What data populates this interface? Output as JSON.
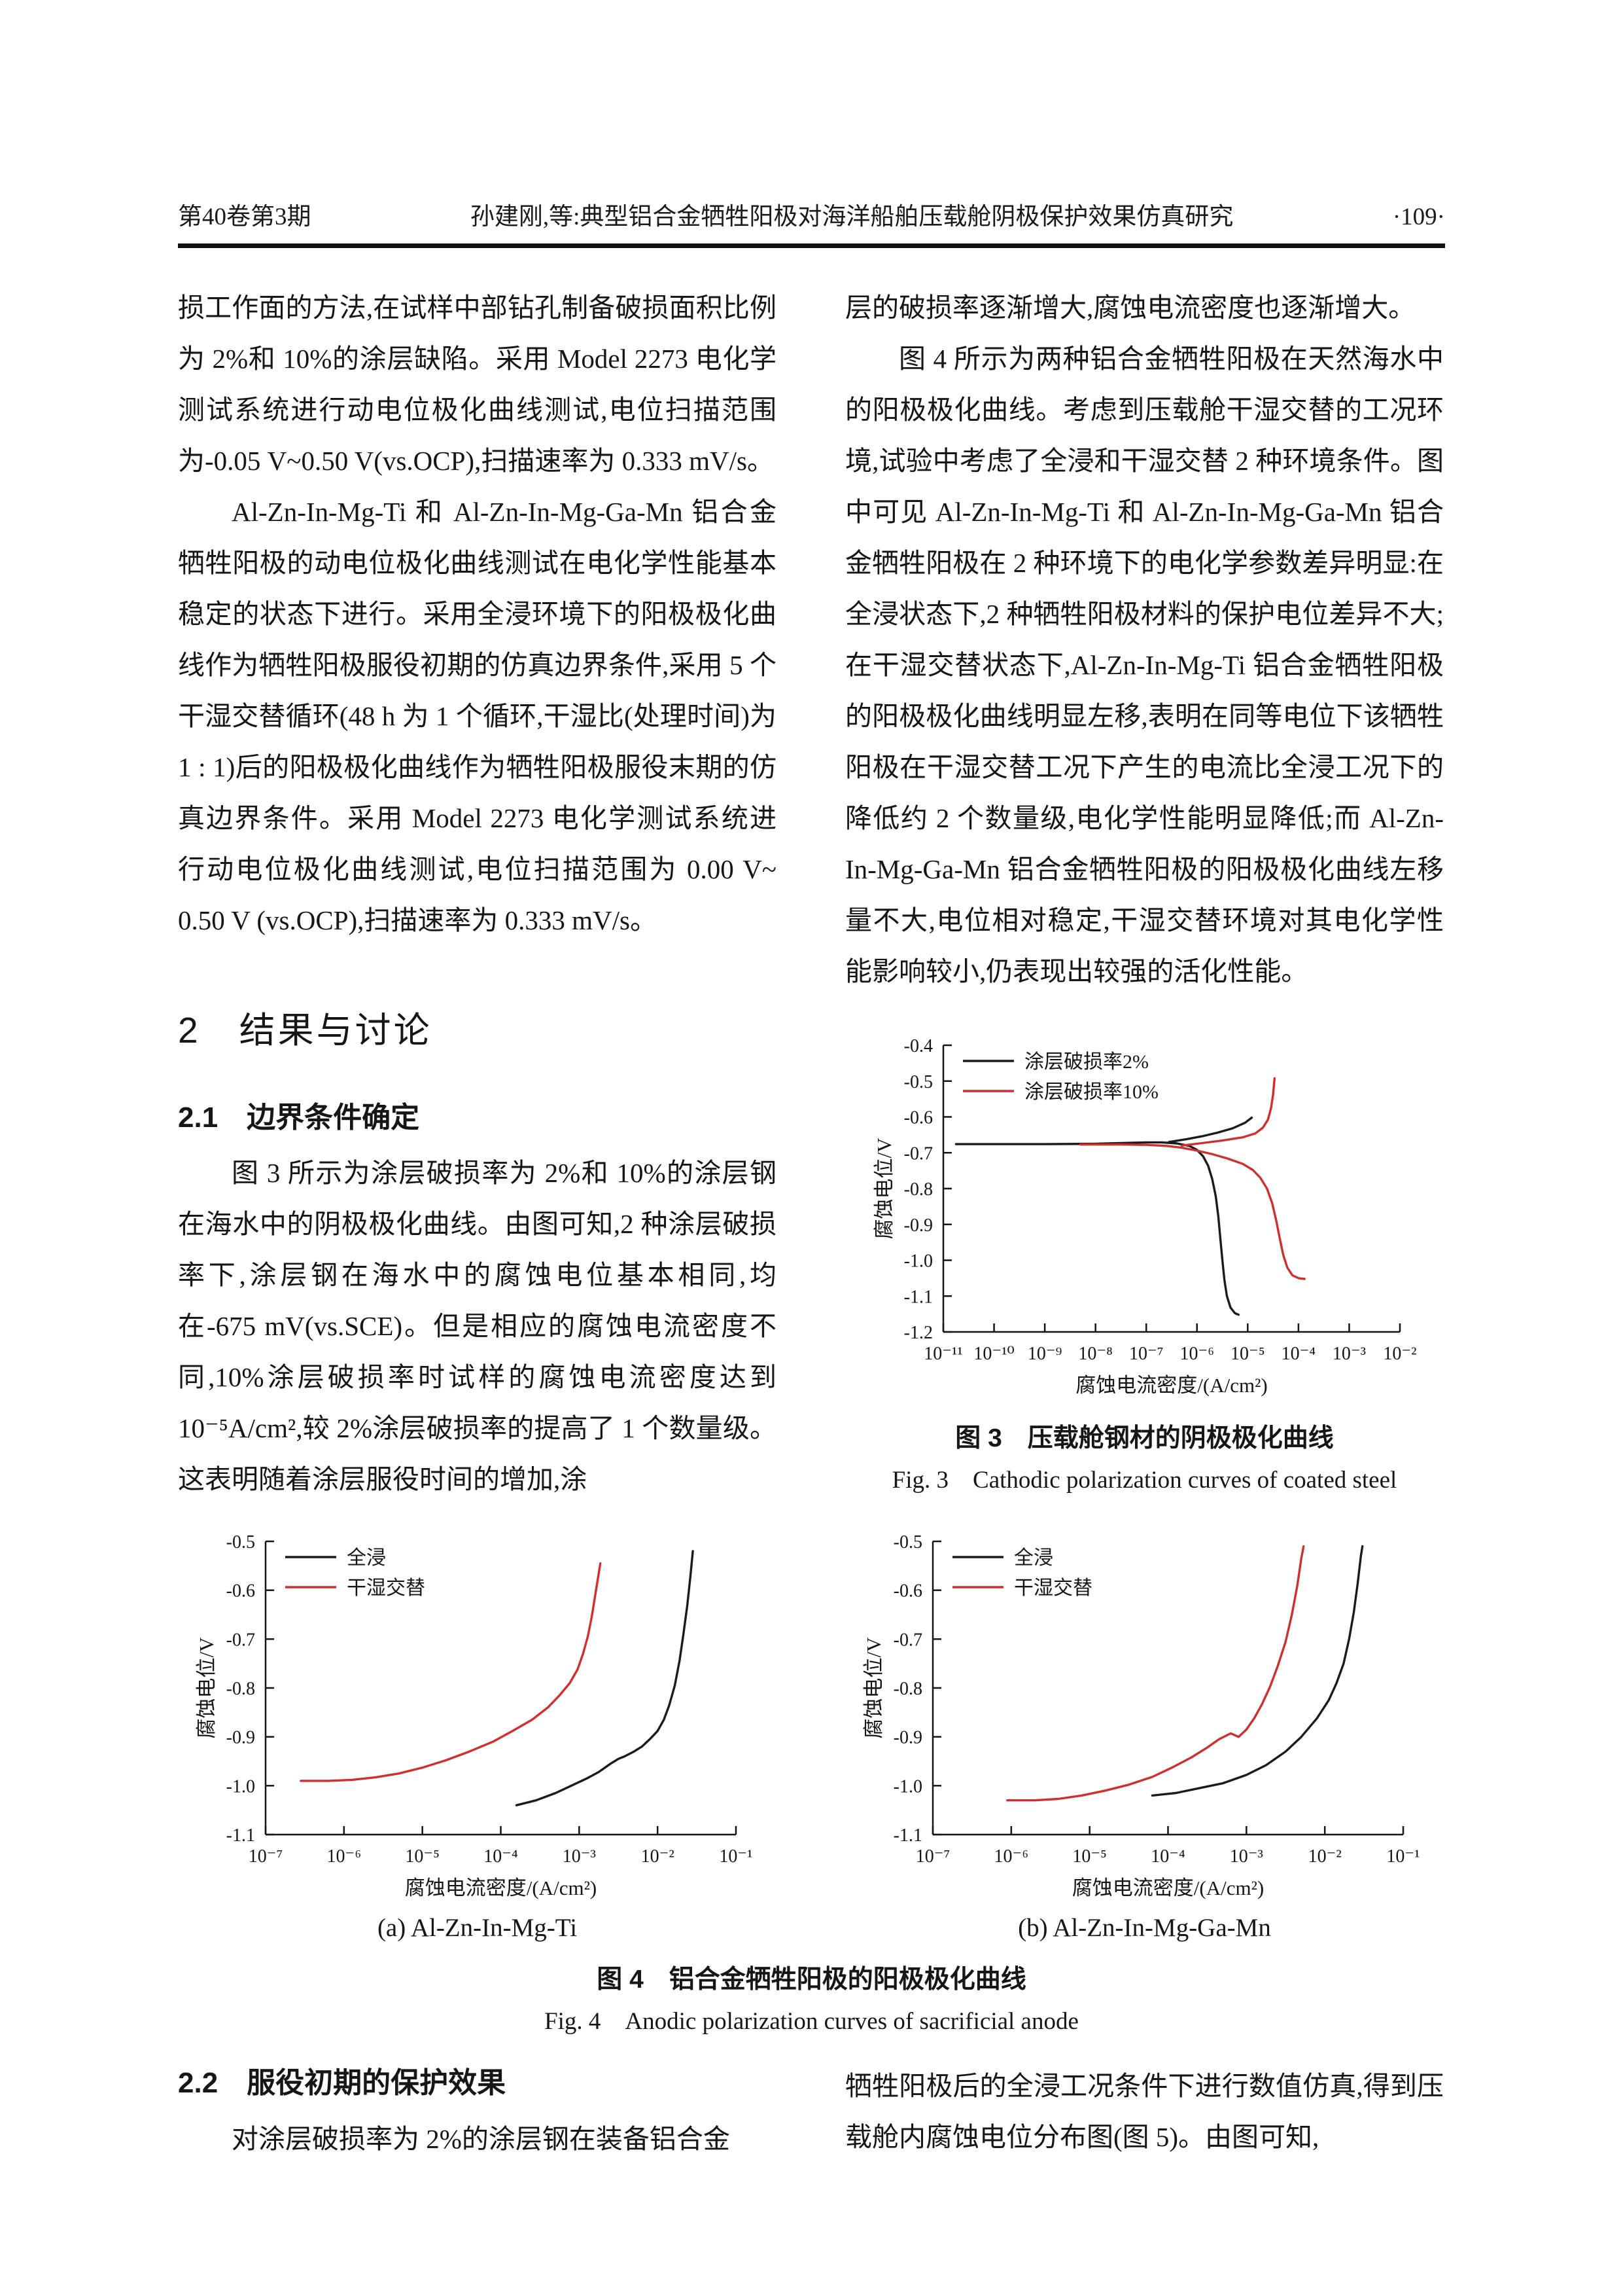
{
  "header": {
    "volume_issue": "第40卷第3期",
    "title": "孙建刚,等:典型铝合金牺牲阳极对海洋船舶压载舱阴极保护效果仿真研究",
    "page_no": "·109·"
  },
  "left": {
    "para1": "损工作面的方法,在试样中部钻孔制备破损面积比例为 2%和 10%的涂层缺陷。采用 Model 2273 电化学测试系统进行动电位极化曲线测试,电位扫描范围为-0.05 V~0.50 V(vs.OCP),扫描速率为 0.333 mV/s。",
    "para2": "Al-Zn-In-Mg-Ti 和 Al-Zn-In-Mg-Ga-Mn 铝合金牺牲阳极的动电位极化曲线测试在电化学性能基本稳定的状态下进行。采用全浸环境下的阳极极化曲线作为牺牲阳极服役初期的仿真边界条件,采用 5 个干湿交替循环(48 h 为 1 个循环,干湿比(处理时间)为 1 : 1)后的阳极极化曲线作为牺牲阳极服役末期的仿真边界条件。采用 Model 2273 电化学测试系统进行动电位极化曲线测试,电位扫描范围为 0.00 V~ 0.50 V (vs.OCP),扫描速率为 0.333 mV/s。",
    "h2": "2　结果与讨论",
    "h21": "2.1　边界条件确定",
    "para3": "图 3 所示为涂层破损率为 2%和 10%的涂层钢在海水中的阴极极化曲线。由图可知,2 种涂层破损率下,涂层钢在海水中的腐蚀电位基本相同,均在-675 mV(vs.SCE)。但是相应的腐蚀电流密度不同,10%涂层破损率时试样的腐蚀电流密度达到 10⁻⁵A/cm²,较 2%涂层破损率的提高了 1 个数量级。这表明随着涂层服役时间的增加,涂",
    "h22": "2.2　服役初期的保护效果",
    "para4": "对涂层破损率为 2%的涂层钢在装备铝合金"
  },
  "right": {
    "para1": "层的破损率逐渐增大,腐蚀电流密度也逐渐增大。",
    "para2": "图 4 所示为两种铝合金牺牲阳极在天然海水中的阳极极化曲线。考虑到压载舱干湿交替的工况环境,试验中考虑了全浸和干湿交替 2 种环境条件。图中可见 Al-Zn-In-Mg-Ti 和 Al-Zn-In-Mg-Ga-Mn 铝合金牺牲阳极在 2 种环境下的电化学参数差异明显:在全浸状态下,2 种牺牲阳极材料的保护电位差异不大;在干湿交替状态下,Al-Zn-In-Mg-Ti 铝合金牺牲阳极的阳极极化曲线明显左移,表明在同等电位下该牺牲阳极在干湿交替工况下产生的电流比全浸工况下的降低约 2 个数量级,电化学性能明显降低;而 Al-Zn-In-Mg-Ga-Mn 铝合金牺牲阳极的阳极极化曲线左移量不大,电位相对稳定,干湿交替环境对其电化学性能影响较小,仍表现出较强的活化性能。",
    "para3": "牺牲阳极后的全浸工况条件下进行数值仿真,得到压载舱内腐蚀电位分布图(图 5)。由图可知,"
  },
  "fig3": {
    "caption_cn": "图 3　压载舱钢材的阴极极化曲线",
    "caption_en": "Fig. 3　Cathodic polarization curves of coated steel"
  },
  "fig4": {
    "sub_a": "(a) Al-Zn-In-Mg-Ti",
    "sub_b": "(b) Al-Zn-In-Mg-Ga-Mn",
    "caption_cn": "图 4　铝合金牺牲阳极的阳极极化曲线",
    "caption_en": "Fig. 4　Anodic polarization curves of sacrificial anode"
  },
  "colors": {
    "curve_black": "#1b1b1b",
    "curve_red": "#cf2f2f"
  },
  "chart_data": [
    {
      "name": "fig3-cathodic-polarization-coated-steel",
      "type": "line",
      "title": "压载舱钢材的阴极极化曲线",
      "xlabel": "腐蚀电流密度/(A/cm²)",
      "ylabel": "腐蚀电位/V",
      "x_scale": "log10",
      "xlim_exp": [
        -11,
        -2
      ],
      "x_tick_exponents": [
        -11,
        -10,
        -9,
        -8,
        -7,
        -6,
        -5,
        -4,
        -3,
        -2
      ],
      "ylim": [
        -1.2,
        -0.4
      ],
      "y_ticks": [
        -0.4,
        -0.5,
        -0.6,
        -0.7,
        -0.8,
        -0.9,
        -1.0,
        -1.1,
        -1.2
      ],
      "grid": false,
      "legend_position": "top-left",
      "series": [
        {
          "name": "涂层破损率2%",
          "color": "#1b1b1b",
          "paths": [
            [
              [
                -10.75,
                -0.676
              ],
              [
                -10,
                -0.676
              ],
              [
                -9,
                -0.676
              ],
              [
                -8,
                -0.675
              ],
              [
                -7.5,
                -0.673
              ],
              [
                -7,
                -0.671
              ],
              [
                -6.7,
                -0.671
              ],
              [
                -6.4,
                -0.674
              ],
              [
                -6.15,
                -0.681
              ],
              [
                -6.0,
                -0.692
              ],
              [
                -5.88,
                -0.71
              ],
              [
                -5.78,
                -0.736
              ],
              [
                -5.7,
                -0.773
              ],
              [
                -5.63,
                -0.822
              ],
              [
                -5.58,
                -0.878
              ],
              [
                -5.54,
                -0.94
              ],
              [
                -5.5,
                -1.0
              ],
              [
                -5.46,
                -1.055
              ],
              [
                -5.41,
                -1.1
              ],
              [
                -5.34,
                -1.132
              ],
              [
                -5.25,
                -1.148
              ],
              [
                -5.18,
                -1.152
              ]
            ],
            [
              [
                -6.55,
                -0.67
              ],
              [
                -6.2,
                -0.662
              ],
              [
                -5.9,
                -0.654
              ],
              [
                -5.6,
                -0.644
              ],
              [
                -5.3,
                -0.632
              ],
              [
                -5.05,
                -0.616
              ],
              [
                -4.92,
                -0.602
              ]
            ]
          ]
        },
        {
          "name": "涂层破损率10%",
          "color": "#cf2f2f",
          "paths": [
            [
              [
                -8.3,
                -0.677
              ],
              [
                -7.5,
                -0.677
              ],
              [
                -7.0,
                -0.678
              ],
              [
                -6.6,
                -0.681
              ],
              [
                -6.3,
                -0.686
              ],
              [
                -6.0,
                -0.694
              ],
              [
                -5.7,
                -0.704
              ],
              [
                -5.4,
                -0.716
              ],
              [
                -5.1,
                -0.731
              ],
              [
                -4.9,
                -0.748
              ],
              [
                -4.75,
                -0.77
              ],
              [
                -4.62,
                -0.8
              ],
              [
                -4.52,
                -0.84
              ],
              [
                -4.44,
                -0.888
              ],
              [
                -4.37,
                -0.938
              ],
              [
                -4.3,
                -0.985
              ],
              [
                -4.22,
                -1.02
              ],
              [
                -4.12,
                -1.042
              ],
              [
                -4.0,
                -1.05
              ],
              [
                -3.88,
                -1.052
              ]
            ],
            [
              [
                -6.3,
                -0.68
              ],
              [
                -5.9,
                -0.673
              ],
              [
                -5.5,
                -0.666
              ],
              [
                -5.1,
                -0.657
              ],
              [
                -4.85,
                -0.646
              ],
              [
                -4.7,
                -0.63
              ],
              [
                -4.6,
                -0.607
              ],
              [
                -4.54,
                -0.575
              ],
              [
                -4.5,
                -0.538
              ],
              [
                -4.48,
                -0.505
              ],
              [
                -4.47,
                -0.492
              ]
            ]
          ]
        }
      ]
    },
    {
      "name": "fig4a-anodic-polarization-Al-Zn-In-Mg-Ti",
      "type": "line",
      "title": "(a) Al-Zn-In-Mg-Ti",
      "xlabel": "腐蚀电流密度/(A/cm²)",
      "ylabel": "腐蚀电位/V",
      "x_scale": "log10",
      "xlim_exp": [
        -7,
        -1
      ],
      "x_tick_exponents": [
        -7,
        -6,
        -5,
        -4,
        -3,
        -2,
        -1
      ],
      "ylim": [
        -1.1,
        -0.5
      ],
      "y_ticks": [
        -0.5,
        -0.6,
        -0.7,
        -0.8,
        -0.9,
        -1.0,
        -1.1
      ],
      "grid": false,
      "legend_position": "top-left",
      "series": [
        {
          "name": "全浸",
          "color": "#1b1b1b",
          "paths": [
            [
              [
                -3.8,
                -1.04
              ],
              [
                -3.55,
                -1.03
              ],
              [
                -3.3,
                -1.015
              ],
              [
                -3.1,
                -1.0
              ],
              [
                -2.9,
                -0.985
              ],
              [
                -2.75,
                -0.972
              ],
              [
                -2.6,
                -0.955
              ],
              [
                -2.5,
                -0.945
              ],
              [
                -2.42,
                -0.94
              ],
              [
                -2.3,
                -0.93
              ],
              [
                -2.2,
                -0.92
              ],
              [
                -2.1,
                -0.905
              ],
              [
                -2.0,
                -0.888
              ],
              [
                -1.92,
                -0.865
              ],
              [
                -1.85,
                -0.835
              ],
              [
                -1.78,
                -0.795
              ],
              [
                -1.72,
                -0.745
              ],
              [
                -1.67,
                -0.69
              ],
              [
                -1.62,
                -0.63
              ],
              [
                -1.58,
                -0.57
              ],
              [
                -1.55,
                -0.52
              ]
            ]
          ]
        },
        {
          "name": "干湿交替",
          "color": "#cf2f2f",
          "paths": [
            [
              [
                -6.55,
                -0.99
              ],
              [
                -6.2,
                -0.99
              ],
              [
                -5.9,
                -0.988
              ],
              [
                -5.6,
                -0.983
              ],
              [
                -5.3,
                -0.975
              ],
              [
                -5.0,
                -0.963
              ],
              [
                -4.7,
                -0.948
              ],
              [
                -4.4,
                -0.93
              ],
              [
                -4.1,
                -0.91
              ],
              [
                -3.85,
                -0.888
              ],
              [
                -3.6,
                -0.865
              ],
              [
                -3.4,
                -0.84
              ],
              [
                -3.25,
                -0.815
              ],
              [
                -3.12,
                -0.79
              ],
              [
                -3.02,
                -0.762
              ],
              [
                -2.95,
                -0.73
              ],
              [
                -2.89,
                -0.695
              ],
              [
                -2.84,
                -0.655
              ],
              [
                -2.8,
                -0.615
              ],
              [
                -2.76,
                -0.575
              ],
              [
                -2.73,
                -0.545
              ]
            ]
          ]
        }
      ]
    },
    {
      "name": "fig4b-anodic-polarization-Al-Zn-In-Mg-Ga-Mn",
      "type": "line",
      "title": "(b) Al-Zn-In-Mg-Ga-Mn",
      "xlabel": "腐蚀电流密度/(A/cm²)",
      "ylabel": "腐蚀电位/V",
      "x_scale": "log10",
      "xlim_exp": [
        -7,
        -1
      ],
      "x_tick_exponents": [
        -7,
        -6,
        -5,
        -4,
        -3,
        -2,
        -1
      ],
      "ylim": [
        -1.1,
        -0.5
      ],
      "y_ticks": [
        -0.5,
        -0.6,
        -0.7,
        -0.8,
        -0.9,
        -1.0,
        -1.1
      ],
      "grid": false,
      "legend_position": "top-left",
      "series": [
        {
          "name": "全浸",
          "color": "#1b1b1b",
          "paths": [
            [
              [
                -4.2,
                -1.02
              ],
              [
                -3.9,
                -1.015
              ],
              [
                -3.6,
                -1.005
              ],
              [
                -3.3,
                -0.995
              ],
              [
                -3.0,
                -0.978
              ],
              [
                -2.75,
                -0.958
              ],
              [
                -2.5,
                -0.93
              ],
              [
                -2.3,
                -0.9
              ],
              [
                -2.1,
                -0.862
              ],
              [
                -1.95,
                -0.825
              ],
              [
                -1.85,
                -0.79
              ],
              [
                -1.76,
                -0.75
              ],
              [
                -1.69,
                -0.7
              ],
              [
                -1.63,
                -0.645
              ],
              [
                -1.58,
                -0.585
              ],
              [
                -1.54,
                -0.53
              ],
              [
                -1.52,
                -0.51
              ]
            ]
          ]
        },
        {
          "name": "干湿交替",
          "color": "#cf2f2f",
          "paths": [
            [
              [
                -6.05,
                -1.03
              ],
              [
                -5.7,
                -1.03
              ],
              [
                -5.4,
                -1.027
              ],
              [
                -5.1,
                -1.02
              ],
              [
                -4.8,
                -1.01
              ],
              [
                -4.5,
                -0.998
              ],
              [
                -4.2,
                -0.982
              ],
              [
                -3.95,
                -0.963
              ],
              [
                -3.7,
                -0.942
              ],
              [
                -3.5,
                -0.922
              ],
              [
                -3.35,
                -0.905
              ],
              [
                -3.2,
                -0.893
              ],
              [
                -3.1,
                -0.9
              ],
              [
                -3.0,
                -0.885
              ],
              [
                -2.9,
                -0.862
              ],
              [
                -2.8,
                -0.833
              ],
              [
                -2.7,
                -0.798
              ],
              [
                -2.6,
                -0.755
              ],
              [
                -2.5,
                -0.705
              ],
              [
                -2.42,
                -0.65
              ],
              [
                -2.35,
                -0.59
              ],
              [
                -2.3,
                -0.535
              ],
              [
                -2.27,
                -0.51
              ]
            ]
          ]
        }
      ]
    }
  ]
}
